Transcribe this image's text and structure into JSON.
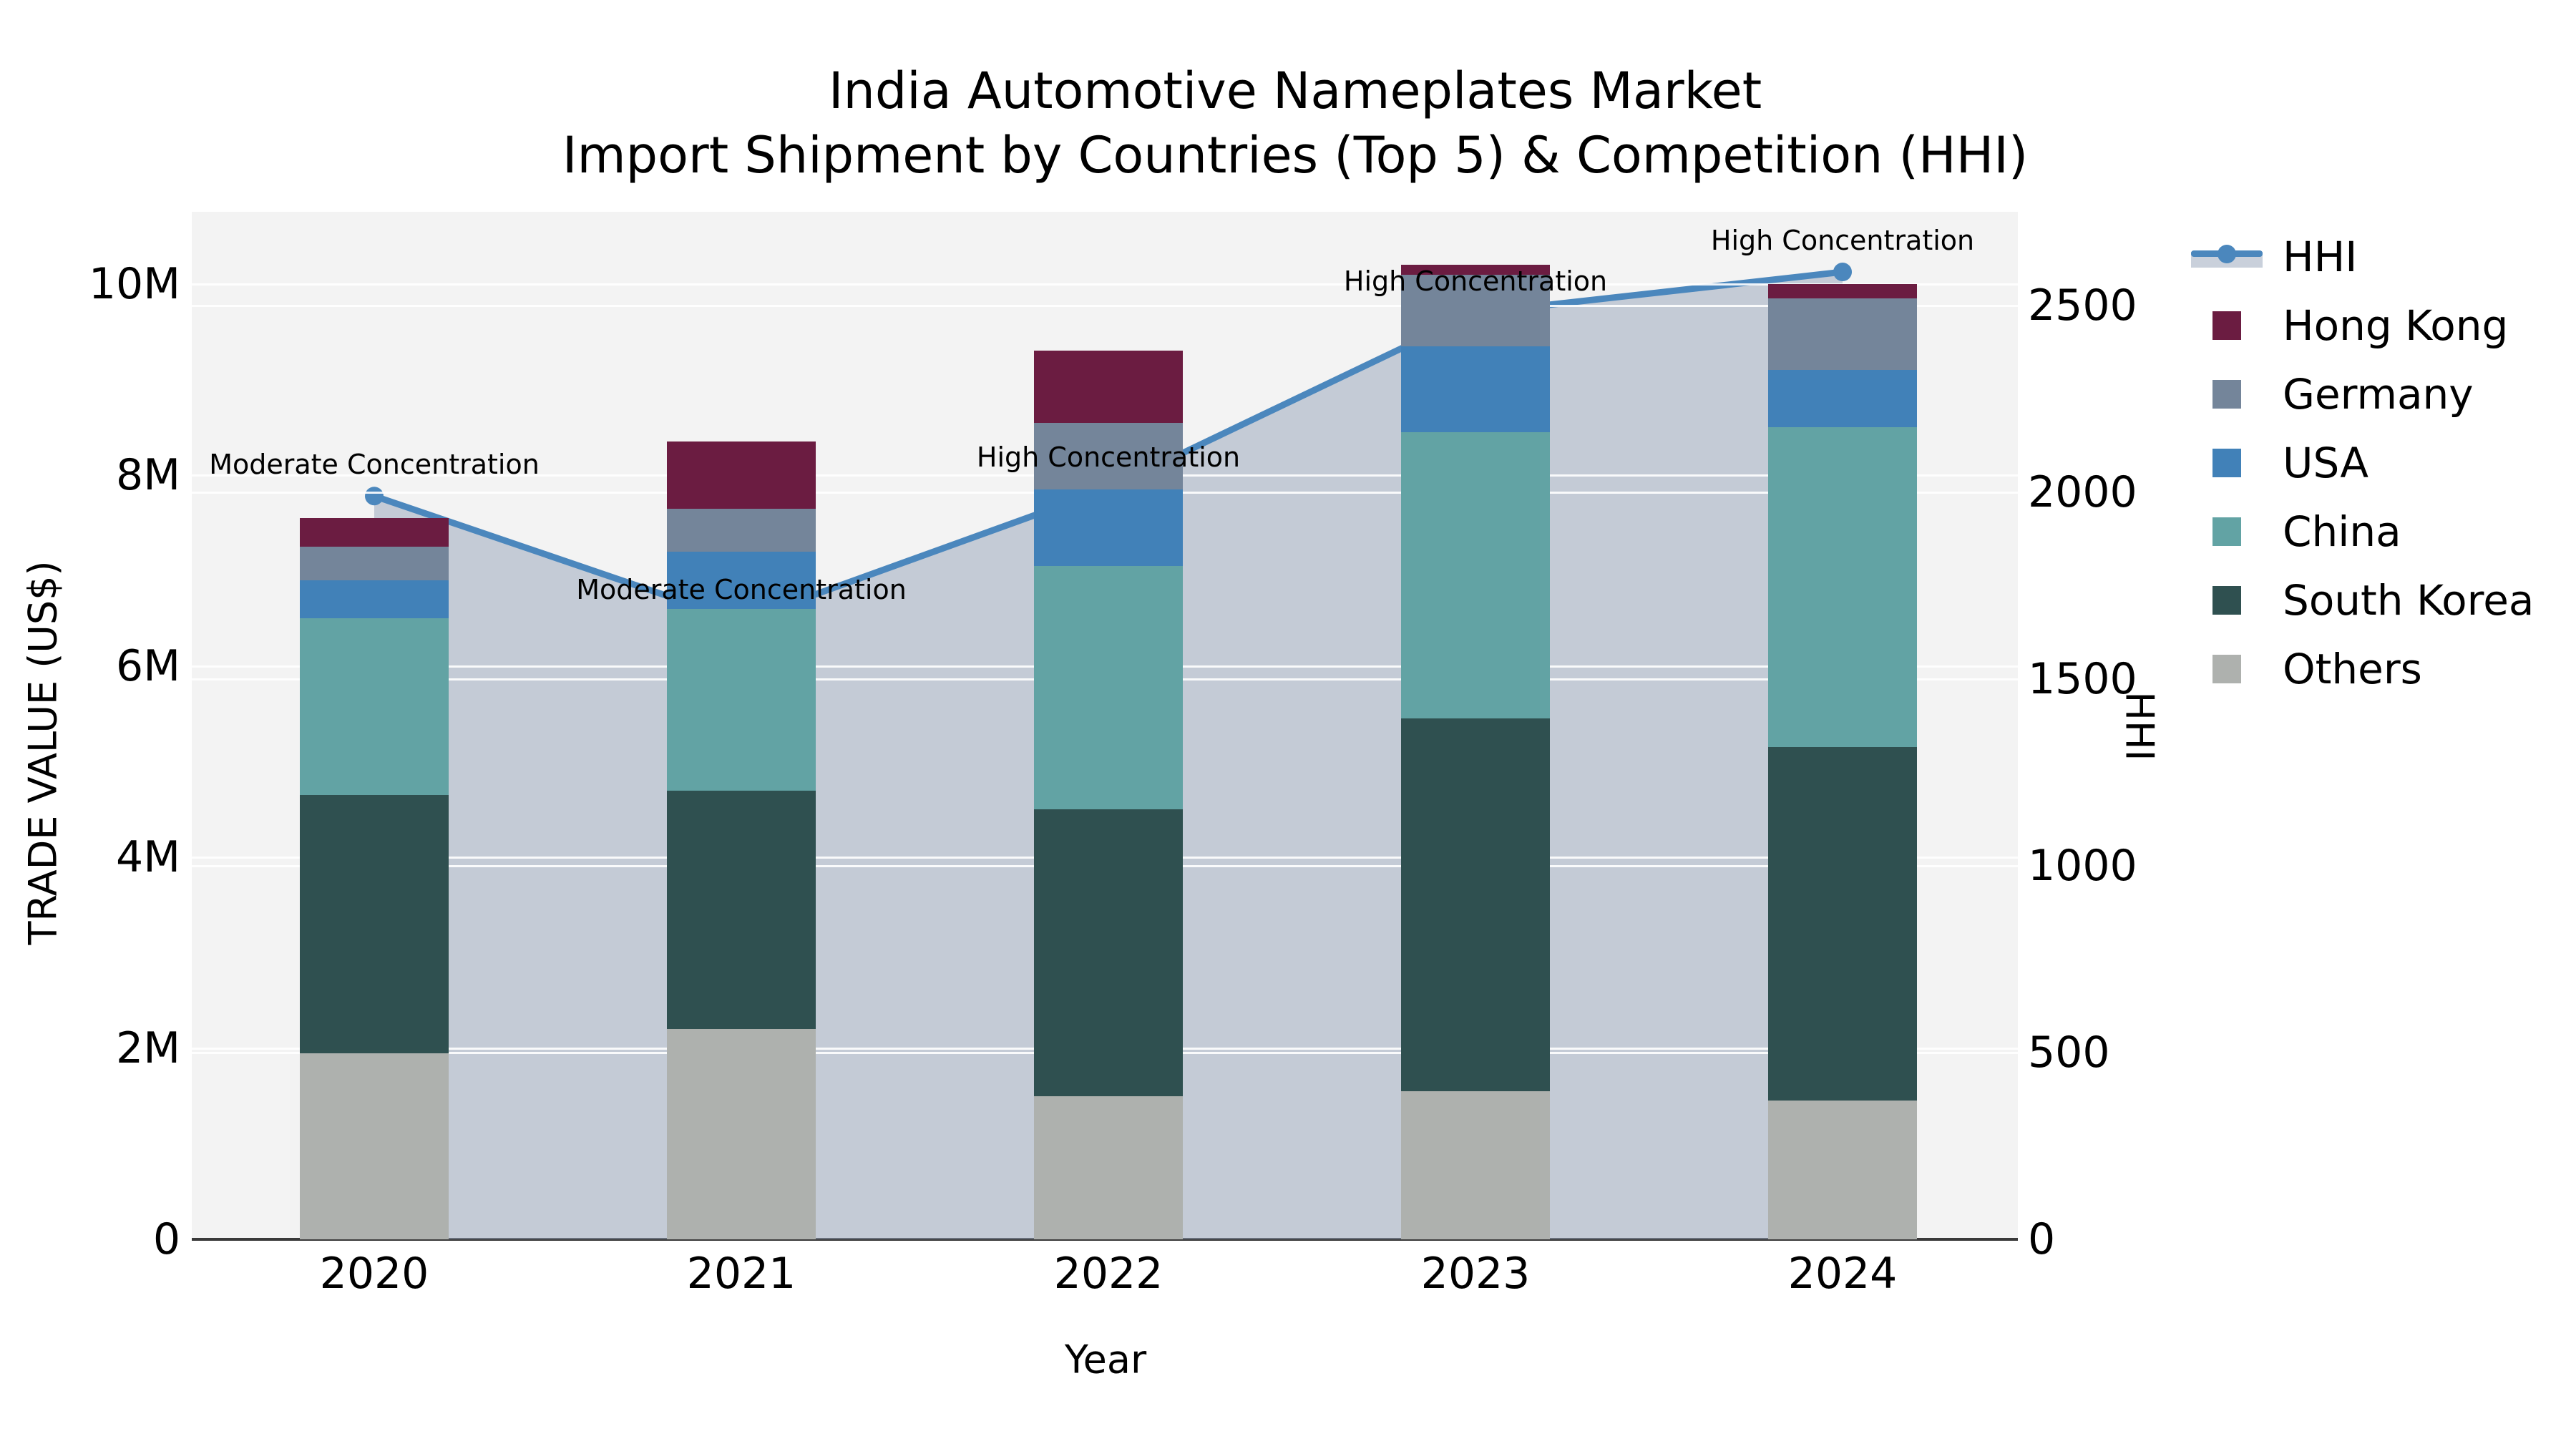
{
  "title": {
    "line1": "India Automotive Nameplates Market",
    "line2": "Import Shipment by Countries (Top 5) & Competition (HHI)"
  },
  "axes": {
    "x_label": "Year",
    "y_left_label": "TRADE VALUE (US$)",
    "y_right_label": "HHI",
    "y_left_tick_labels": [
      "0",
      "2M",
      "4M",
      "6M",
      "8M",
      "10M"
    ],
    "y_left_tick_values": [
      0,
      2,
      4,
      6,
      8,
      10
    ],
    "y_right_tick_labels": [
      "0",
      "500",
      "1000",
      "1500",
      "2000",
      "2500"
    ],
    "y_right_tick_values": [
      0,
      500,
      1000,
      1500,
      2000,
      2500
    ]
  },
  "colors": {
    "page_background": "#ffffff",
    "plot_background": "#f3f3f3",
    "gridline": "rgba(255,255,255,0.9)",
    "axis_line": "#3a3a3a",
    "text": "#000000",
    "hhi_line": "#4b87bd",
    "hhi_area": "rgba(150,163,186,0.5)"
  },
  "chart_data": {
    "type": "bar",
    "subtype": "stacked-bars-with-hhi-line-and-area",
    "title": "India Automotive Nameplates Market — Import Shipment by Countries (Top 5) & Competition (HHI)",
    "xlabel": "Year",
    "ylabel_left": "TRADE VALUE (US$)",
    "ylabel_right": "HHI",
    "categories": [
      "2020",
      "2021",
      "2022",
      "2023",
      "2024"
    ],
    "value_unit": "millions of US$",
    "y_left_range": [
      0,
      10.75
    ],
    "y_right_range": [
      0,
      2750
    ],
    "grid": true,
    "legend_position": "right",
    "series": [
      {
        "name": "Others",
        "color": "#aeb1ae",
        "values": [
          1.95,
          2.2,
          1.5,
          1.55,
          1.45
        ]
      },
      {
        "name": "South Korea",
        "color": "#2f5050",
        "values": [
          2.7,
          2.5,
          3.0,
          3.9,
          3.7
        ]
      },
      {
        "name": "China",
        "color": "#62a3a4",
        "values": [
          1.85,
          1.9,
          2.55,
          3.0,
          3.35
        ]
      },
      {
        "name": "USA",
        "color": "#4181b8",
        "values": [
          0.4,
          0.6,
          0.8,
          0.9,
          0.6
        ]
      },
      {
        "name": "Germany",
        "color": "#74859a",
        "values": [
          0.35,
          0.45,
          0.7,
          0.75,
          0.75
        ]
      },
      {
        "name": "Hong Kong",
        "color": "#6b1c41",
        "values": [
          0.3,
          0.7,
          0.75,
          0.1,
          0.15
        ]
      }
    ],
    "bar_totals": [
      7.55,
      8.35,
      9.3,
      10.2,
      10.0
    ],
    "line_series": {
      "name": "HHI",
      "axis": "right",
      "values": [
        1990,
        1655,
        2010,
        2480,
        2590
      ],
      "marker": "circle",
      "area_fill": true
    },
    "annotations": [
      {
        "category": "2020",
        "text": "Moderate Concentration"
      },
      {
        "category": "2021",
        "text": "Moderate Concentration"
      },
      {
        "category": "2022",
        "text": "High Concentration"
      },
      {
        "category": "2023",
        "text": "High Concentration"
      },
      {
        "category": "2024",
        "text": "High Concentration"
      }
    ],
    "legend": [
      "HHI",
      "Hong Kong",
      "Germany",
      "USA",
      "China",
      "South Korea",
      "Others"
    ]
  }
}
